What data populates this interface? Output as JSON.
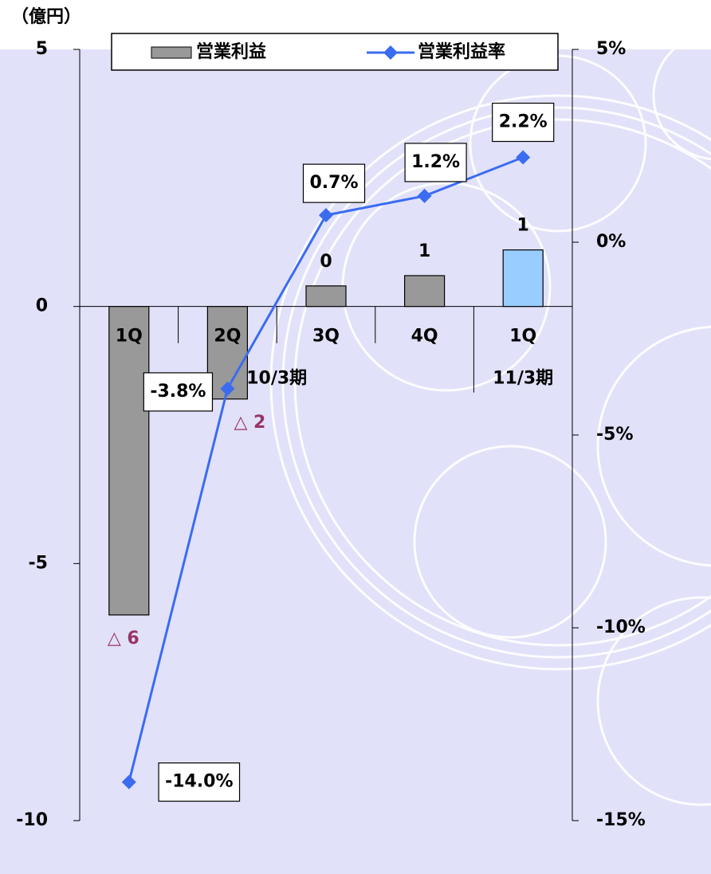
{
  "chart_data": {
    "type": "bar-line",
    "ylabel": "（億円）",
    "categories": [
      "1Q",
      "2Q",
      "3Q",
      "4Q",
      "1Q"
    ],
    "groups": [
      {
        "label": "10/3期",
        "categories": 4
      },
      {
        "label": "11/3期",
        "categories": 1
      }
    ],
    "series": [
      {
        "name": "営業利益",
        "type": "bar",
        "colors": [
          "#999999",
          "#999999",
          "#999999",
          "#999999",
          "#99ccff"
        ],
        "values": [
          -6,
          -1.8,
          0.4,
          0.6,
          1.1
        ],
        "value_labels": [
          "△ 6",
          "△ 2",
          "0",
          "1",
          "1"
        ]
      },
      {
        "name": "営業利益率",
        "type": "line",
        "axis": "y2",
        "color": "#3b6cf0",
        "values": [
          -14.0,
          -3.8,
          0.7,
          1.2,
          2.2
        ],
        "value_labels": [
          "-14.0%",
          "-3.8%",
          "0.7%",
          "1.2%",
          "2.2%"
        ]
      }
    ],
    "ylim": [
      -10,
      5
    ],
    "yticks": [
      -10,
      -5,
      0,
      5
    ],
    "y2lim": [
      -15,
      5
    ],
    "y2ticks": [
      {
        "value": -15,
        "label": "-15%"
      },
      {
        "value": -10,
        "label": "-10%"
      },
      {
        "value": -5,
        "label": "-5%"
      },
      {
        "value": 0,
        "label": "0%"
      },
      {
        "value": 5,
        "label": "5%"
      }
    ],
    "legend": "top"
  }
}
